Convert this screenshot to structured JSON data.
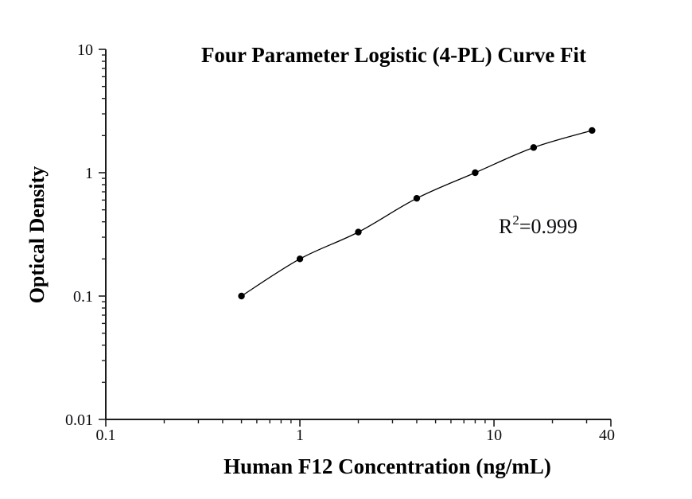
{
  "chart_data": {
    "type": "line",
    "title": "Four Parameter Logistic (4-PL) Curve Fit",
    "xlabel": "Human F12 Concentration (ng/mL)",
    "ylabel": "Optical Density",
    "x_scale": "log",
    "y_scale": "log",
    "xlim": [
      0.1,
      40
    ],
    "ylim": [
      0.01,
      10
    ],
    "grid": false,
    "legend": false,
    "x_ticks": {
      "values": [
        0.1,
        1,
        10,
        40
      ],
      "labels": [
        "0.1",
        "1",
        "10",
        "40"
      ]
    },
    "y_ticks": {
      "values": [
        0.01,
        0.1,
        1,
        10
      ],
      "labels": [
        "0.01",
        "0.1",
        "1",
        "10"
      ]
    },
    "series": [
      {
        "x": [
          0.5,
          1,
          2,
          4,
          8,
          16,
          32
        ],
        "y": [
          0.1,
          0.2,
          0.33,
          0.62,
          1.0,
          1.6,
          2.2
        ],
        "marker": "filled-circle",
        "color": "#000000"
      }
    ],
    "annotation": {
      "base": "R",
      "sup": "2",
      "rest": "=0.999"
    },
    "colors": {
      "axis": "#1c1c1c",
      "text": "#000000",
      "background": "#ffffff"
    }
  }
}
